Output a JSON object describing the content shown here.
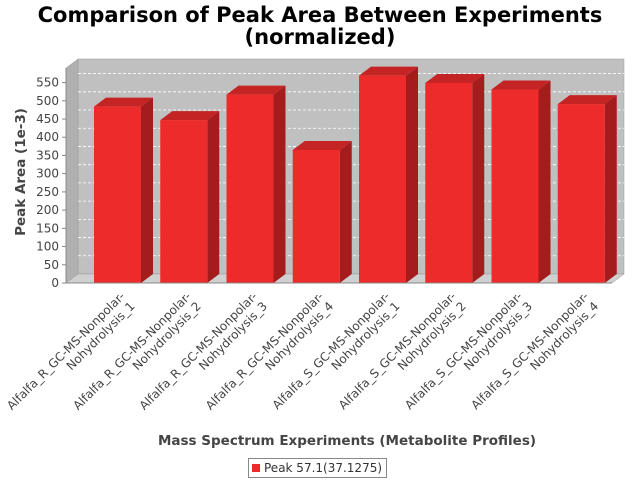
{
  "chart_data": {
    "type": "bar",
    "title": [
      "Comparison of Peak Area Between Experiments",
      "(normalized)"
    ],
    "xlabel": "Mass Spectrum Experiments (Metabolite Profiles)",
    "ylabel": "Peak Area (1e-3)",
    "categories": [
      [
        "Alfalfa_R_GC-MS-Nonpolar-",
        "Nohydrolysis_1"
      ],
      [
        "Alfalfa_R_GC-MS-Nonpolar-",
        "Nohydrolysis_2"
      ],
      [
        "Alfalfa_R_GC-MS-Nonpolar-",
        "Nohydrolysis_3"
      ],
      [
        "Alfalfa_R_GC-MS-Nonpolar-",
        "Nohydrolysis_4"
      ],
      [
        "Alfalfa_S_GC-MS-Nonpolar-",
        "Nohydrolysis_1"
      ],
      [
        "Alfalfa_S_GC-MS-Nonpolar-",
        "Nohydrolysis_2"
      ],
      [
        "Alfalfa_S_GC-MS-Nonpolar-",
        "Nohydrolysis_3"
      ],
      [
        "Alfalfa_S_GC-MS-Nonpolar-",
        "Nohydrolysis_4"
      ]
    ],
    "series": [
      {
        "name": "Peak 57.1(37.1275)",
        "values": [
          484,
          447,
          517,
          365,
          569,
          549,
          531,
          491
        ]
      }
    ],
    "ylim": [
      0,
      590
    ],
    "yticks": [
      0,
      50,
      100,
      150,
      200,
      250,
      300,
      350,
      400,
      450,
      500,
      550
    ],
    "grid": true,
    "legend_position": "bottom",
    "colors": {
      "bar_front": "#ee2b2b",
      "bar_side": "#a51c1c",
      "bar_top": "#c42424",
      "plot_background": "#c0c0c0"
    }
  }
}
